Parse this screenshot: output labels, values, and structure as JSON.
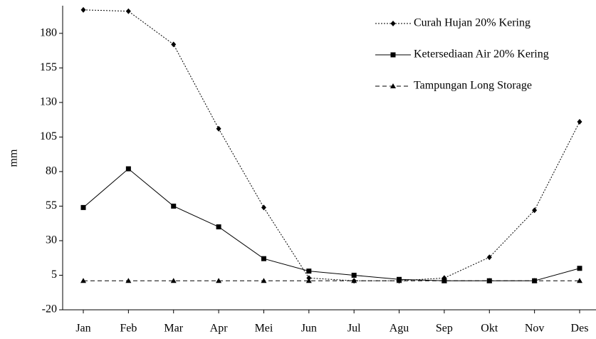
{
  "chart_data": {
    "type": "line",
    "ylabel": "mm",
    "categories": [
      "Jan",
      "Feb",
      "Mar",
      "Apr",
      "Mei",
      "Jun",
      "Jul",
      "Agu",
      "Sep",
      "Okt",
      "Nov",
      "Des"
    ],
    "series": [
      {
        "name": "Curah Hujan 20% Kering",
        "color": "#000000",
        "marker": "diamond",
        "dash": "dotted",
        "values": [
          197,
          196,
          172,
          111,
          54,
          3,
          1,
          1,
          3,
          18,
          52,
          116
        ]
      },
      {
        "name": "Ketersediaan Air 20% Kering",
        "color": "#000000",
        "marker": "square",
        "dash": "solid",
        "values": [
          54,
          82,
          55,
          40,
          17,
          8,
          5,
          2,
          1,
          1,
          1,
          10
        ]
      },
      {
        "name": "Tampungan Long Storage",
        "color": "#000000",
        "marker": "triangle",
        "dash": "dashed",
        "values": [
          1,
          1,
          1,
          1,
          1,
          1,
          1,
          1,
          1,
          1,
          1,
          1
        ]
      }
    ],
    "ylim": [
      -20,
      200
    ],
    "yticks": [
      -20,
      5,
      30,
      55,
      80,
      105,
      130,
      155,
      180
    ],
    "grid": false,
    "legend": "upper right"
  }
}
